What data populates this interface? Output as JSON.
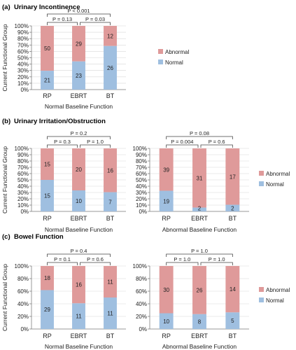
{
  "colors": {
    "abnormal": "#df9a9a",
    "normal": "#9fbfe0",
    "axis": "#7f7f7f",
    "grid": "#d8d8d8"
  },
  "panels": [
    {
      "letter": "(a)",
      "title": "Urinary Incontinence"
    },
    {
      "letter": "(b)",
      "title": "Urinary Irritation/Obstruction"
    },
    {
      "letter": "(c)",
      "title": "Bowel Function"
    }
  ],
  "legend": {
    "abnormal": "Abnormal",
    "normal": "Normal"
  },
  "ylabel": "Current Functional Group",
  "chart_data": [
    {
      "type": "bar",
      "stacked": true,
      "percent": true,
      "panel": "(a)",
      "title": "Urinary Incontinence",
      "xlabel": "Normal Baseline Function",
      "ylabel": "Current Functional Group",
      "ylim": [
        0,
        100
      ],
      "yticks": [
        "0%",
        "10%",
        "20%",
        "30%",
        "40%",
        "50%",
        "60%",
        "70%",
        "80%",
        "90%",
        "100%"
      ],
      "categories": [
        "RP",
        "EBRT",
        "BT"
      ],
      "series": [
        {
          "name": "Normal",
          "values": [
            21,
            23,
            26
          ]
        },
        {
          "name": "Abnormal",
          "values": [
            50,
            29,
            12
          ]
        }
      ],
      "pvalues": [
        {
          "text": "P = 0.13",
          "from": 0,
          "to": 1,
          "level": 1
        },
        {
          "text": "P = 0.03",
          "from": 1,
          "to": 2,
          "level": 1
        },
        {
          "text": "P < 0.001",
          "from": 0,
          "to": 2,
          "level": 2
        }
      ]
    },
    {
      "type": "bar",
      "stacked": true,
      "percent": true,
      "panel": "(b)",
      "title": "Urinary Irritation/Obstruction",
      "xlabel": "Normal Baseline Function",
      "ylabel": "Current Functional Group",
      "ylim": [
        0,
        100
      ],
      "yticks": [
        "0%",
        "10%",
        "20%",
        "30%",
        "40%",
        "50%",
        "60%",
        "70%",
        "80%",
        "90%",
        "100%"
      ],
      "categories": [
        "RP",
        "EBRT",
        "BT"
      ],
      "series": [
        {
          "name": "Normal",
          "values": [
            15,
            10,
            7
          ]
        },
        {
          "name": "Abnormal",
          "values": [
            15,
            20,
            16
          ]
        }
      ],
      "pvalues": [
        {
          "text": "P = 0.3",
          "from": 0,
          "to": 1,
          "level": 1
        },
        {
          "text": "P = 1.0",
          "from": 1,
          "to": 2,
          "level": 1
        },
        {
          "text": "P = 0.2",
          "from": 0,
          "to": 2,
          "level": 2
        }
      ]
    },
    {
      "type": "bar",
      "stacked": true,
      "percent": true,
      "panel": "(b)",
      "xlabel": "Abnormal Baseline Function",
      "ylim": [
        0,
        100
      ],
      "yticks": [
        "0%",
        "10%",
        "20%",
        "30%",
        "40%",
        "50%",
        "60%",
        "70%",
        "80%",
        "90%",
        "100%"
      ],
      "categories": [
        "RP",
        "EBRT",
        "BT"
      ],
      "series": [
        {
          "name": "Normal",
          "values": [
            19,
            2,
            2
          ]
        },
        {
          "name": "Abnormal",
          "values": [
            39,
            31,
            17
          ]
        }
      ],
      "pvalues": [
        {
          "text": "P = 0.004",
          "from": 0,
          "to": 1,
          "level": 1
        },
        {
          "text": "P = 0.6",
          "from": 1,
          "to": 2,
          "level": 1
        },
        {
          "text": "P = 0.08",
          "from": 0,
          "to": 2,
          "level": 2
        }
      ]
    },
    {
      "type": "bar",
      "stacked": true,
      "percent": true,
      "panel": "(c)",
      "title": "Bowel Function",
      "xlabel": "Normal Baseline Function",
      "ylabel": "Current Functional Group",
      "ylim": [
        0,
        100
      ],
      "yticks": [
        "0%",
        "20%",
        "40%",
        "60%",
        "80%",
        "100%"
      ],
      "categories": [
        "RP",
        "EBRT",
        "BT"
      ],
      "series": [
        {
          "name": "Normal",
          "values": [
            29,
            11,
            11
          ]
        },
        {
          "name": "Abnormal",
          "values": [
            18,
            16,
            11
          ]
        }
      ],
      "pvalues": [
        {
          "text": "P = 0.1",
          "from": 0,
          "to": 1,
          "level": 1
        },
        {
          "text": "P = 0.6",
          "from": 1,
          "to": 2,
          "level": 1
        },
        {
          "text": "P = 0.4",
          "from": 0,
          "to": 2,
          "level": 2
        }
      ]
    },
    {
      "type": "bar",
      "stacked": true,
      "percent": true,
      "panel": "(c)",
      "xlabel": "Abnormal Baseline Function",
      "ylim": [
        0,
        100
      ],
      "yticks": [
        "0%",
        "20%",
        "40%",
        "60%",
        "80%",
        "100%"
      ],
      "categories": [
        "RP",
        "EBRT",
        "BT"
      ],
      "series": [
        {
          "name": "Normal",
          "values": [
            10,
            8,
            5
          ]
        },
        {
          "name": "Abnormal",
          "values": [
            30,
            26,
            14
          ]
        }
      ],
      "pvalues": [
        {
          "text": "P = 1.0",
          "from": 0,
          "to": 1,
          "level": 1
        },
        {
          "text": "P = 1.0",
          "from": 1,
          "to": 2,
          "level": 1
        },
        {
          "text": "P = 1.0",
          "from": 0,
          "to": 2,
          "level": 2
        }
      ]
    }
  ]
}
